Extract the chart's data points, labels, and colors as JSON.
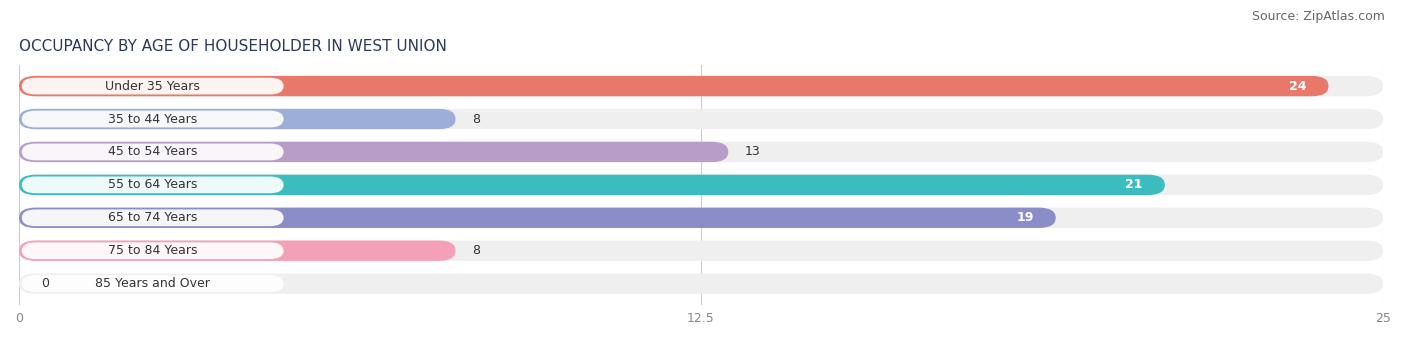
{
  "title": "OCCUPANCY BY AGE OF HOUSEHOLDER IN WEST UNION",
  "source": "Source: ZipAtlas.com",
  "categories": [
    "Under 35 Years",
    "35 to 44 Years",
    "45 to 54 Years",
    "55 to 64 Years",
    "65 to 74 Years",
    "75 to 84 Years",
    "85 Years and Over"
  ],
  "values": [
    24,
    8,
    13,
    21,
    19,
    8,
    0
  ],
  "bar_colors": [
    "#E8796A",
    "#9DAED8",
    "#B89DC8",
    "#3BBCBE",
    "#8B8DC8",
    "#F4A0B8",
    "#F5D8A8"
  ],
  "bar_background": "#EFEFEF",
  "xlim": [
    0,
    25
  ],
  "xticks": [
    0,
    12.5,
    25
  ],
  "title_fontsize": 11,
  "source_fontsize": 9,
  "label_fontsize": 9,
  "value_fontsize": 9,
  "bar_height": 0.62,
  "figsize": [
    14.06,
    3.4
  ],
  "dpi": 100,
  "title_color": "#2B3A5C",
  "label_color": "#333333",
  "axis_color": "#888888",
  "grid_color": "#CCCCCC"
}
